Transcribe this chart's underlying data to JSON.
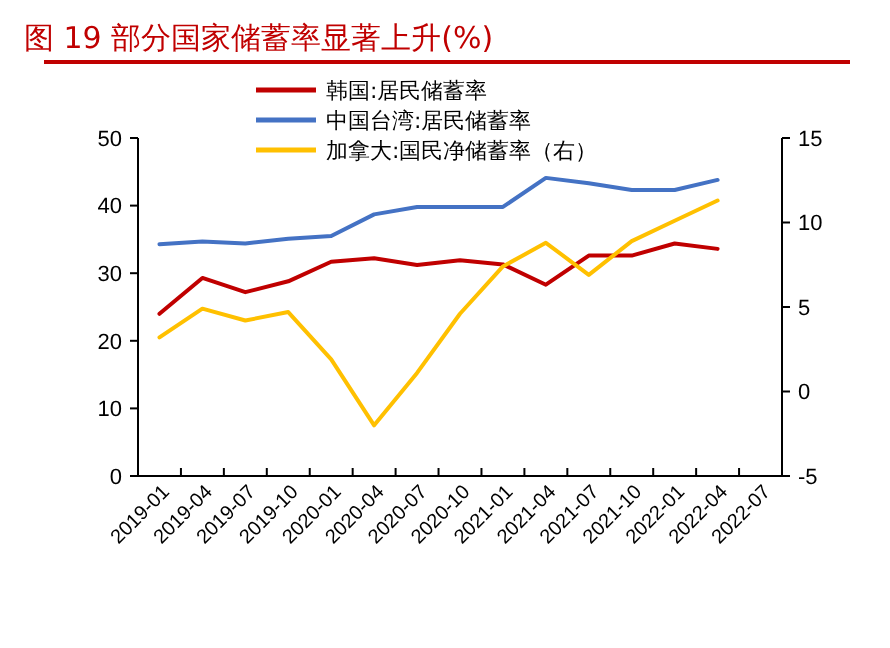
{
  "chart_data": {
    "type": "line",
    "title": "图 19 部分国家储蓄率显著上升(%)",
    "categories": [
      "2019-01",
      "2019-04",
      "2019-07",
      "2019-10",
      "2020-01",
      "2020-04",
      "2020-07",
      "2020-10",
      "2021-01",
      "2021-04",
      "2021-07",
      "2021-10",
      "2022-01",
      "2022-04",
      "2022-07"
    ],
    "series": [
      {
        "name": "韩国:居民储蓄率",
        "color": "#c00000",
        "values": [
          24.0,
          29.3,
          27.2,
          28.8,
          31.7,
          32.2,
          31.2,
          31.9,
          31.3,
          28.3,
          32.6,
          32.6,
          34.4,
          33.6,
          null
        ]
      },
      {
        "name": "中国台湾:居民储蓄率",
        "color": "#4472c4",
        "values": [
          34.3,
          34.7,
          34.4,
          35.1,
          35.5,
          38.7,
          39.8,
          39.8,
          39.8,
          44.1,
          43.3,
          42.3,
          42.3,
          43.8,
          null
        ]
      },
      {
        "name": "加拿大:国民净储蓄率（右）",
        "color": "#ffc000",
        "axis": "y2",
        "values": [
          3.2,
          4.9,
          4.2,
          4.7,
          1.9,
          -2.0,
          1.1,
          4.6,
          7.4,
          8.8,
          6.9,
          8.9,
          10.1,
          11.3,
          null
        ]
      }
    ],
    "ylim": [
      0,
      50
    ],
    "yticks": [
      0,
      10,
      20,
      30,
      40,
      50
    ],
    "y2lim": [
      -5,
      15
    ],
    "y2ticks": [
      -5,
      0,
      5,
      10,
      15
    ],
    "legend": "top",
    "grid": false,
    "marker": "none",
    "line_style": "solid"
  }
}
